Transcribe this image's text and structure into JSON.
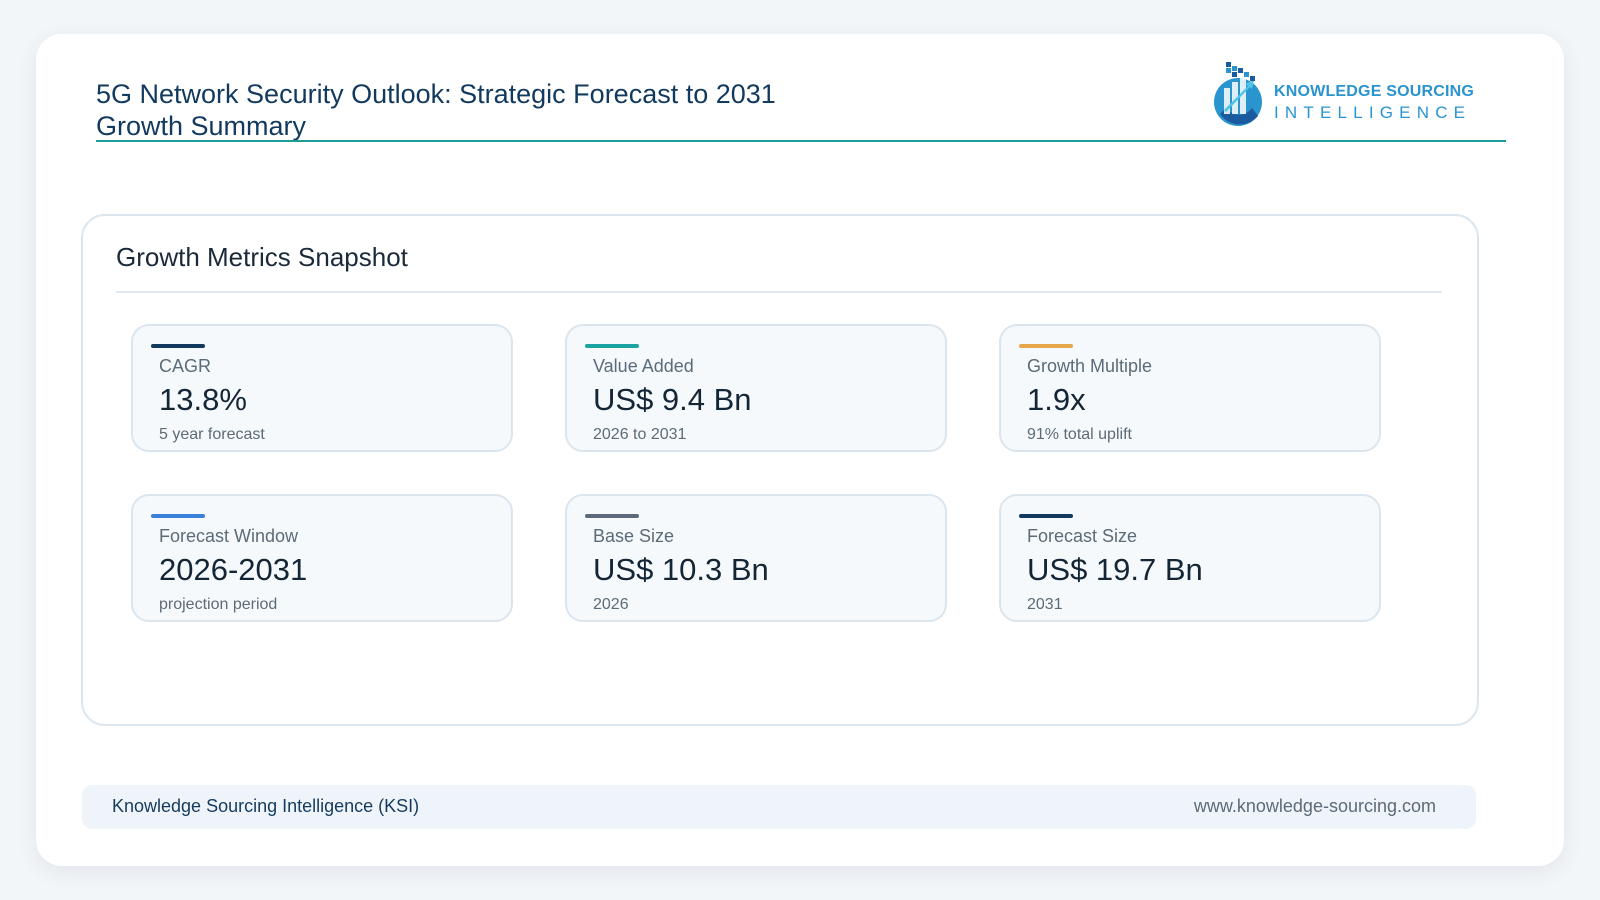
{
  "header": {
    "title_line1": "5G Network Security Outlook: Strategic Forecast to 2031",
    "title_line2": "Growth Summary"
  },
  "logo": {
    "line1": "KNOWLEDGE SOURCING",
    "line2": "INTELLIGENCE",
    "icon": "ksi-logo-icon"
  },
  "panel": {
    "title": "Growth Metrics Snapshot"
  },
  "metrics": [
    {
      "label": "CAGR",
      "value": "13.8%",
      "sub": "5 year forecast",
      "accent": "#12395e"
    },
    {
      "label": "Value Added",
      "value": "US$ 9.4 Bn",
      "sub": "2026 to 2031",
      "accent": "#1aa3a0"
    },
    {
      "label": "Growth Multiple",
      "value": "1.9x",
      "sub": "91% total uplift",
      "accent": "#e6a64a"
    },
    {
      "label": "Forecast Window",
      "value": "2026-2031",
      "sub": "projection period",
      "accent": "#3a7fd9"
    },
    {
      "label": "Base Size",
      "value": "US$ 10.3 Bn",
      "sub": "2026",
      "accent": "#5d6a7b"
    },
    {
      "label": "Forecast Size",
      "value": "US$ 19.7 Bn",
      "sub": "2031",
      "accent": "#12395e"
    }
  ],
  "footer": {
    "left": "Knowledge Sourcing Intelligence (KSI)",
    "right": "www.knowledge-sourcing.com"
  }
}
